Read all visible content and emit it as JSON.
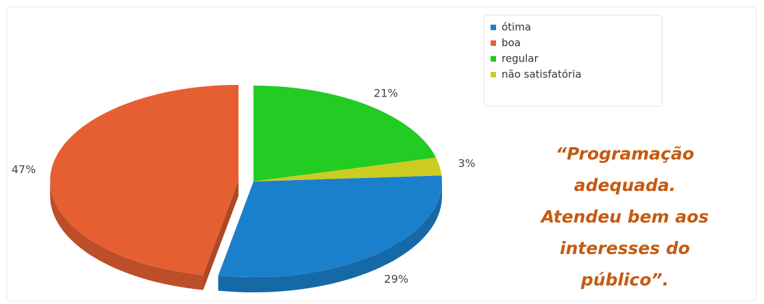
{
  "chart_data": {
    "type": "pie",
    "categories": [
      "ótima",
      "boa",
      "regular",
      "não satisfatória"
    ],
    "values": [
      29,
      47,
      21,
      3
    ],
    "value_labels": [
      "29%",
      "47%",
      "21%",
      "3%"
    ],
    "colors": [
      "#1b80cc",
      "#e65f33",
      "#22cc22",
      "#cccc22"
    ],
    "legend": "top-right"
  },
  "quote": {
    "lines": [
      "“Programação",
      "adequada.",
      "Atendeu bem aos",
      "interesses do",
      "público”."
    ]
  }
}
